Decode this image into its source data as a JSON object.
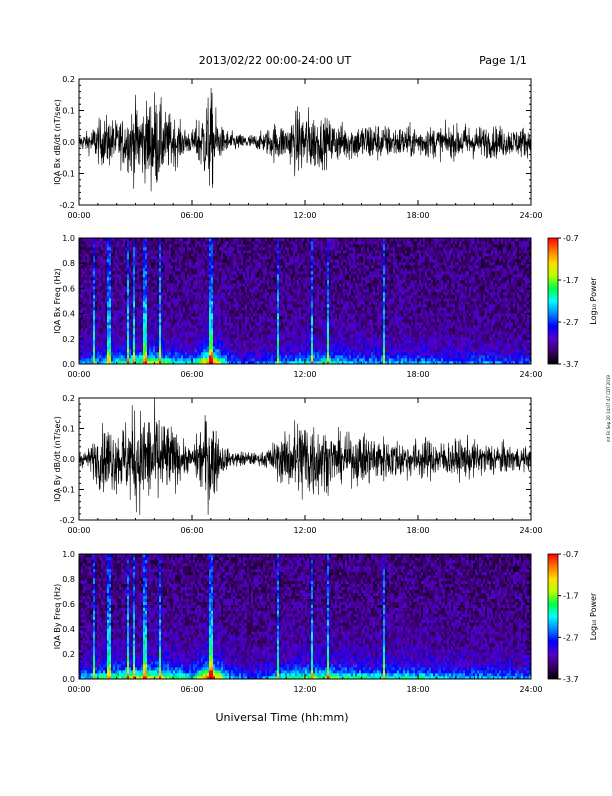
{
  "header": {
    "title": "2013/02/22  00:00-24:00 UT",
    "page": "Page 1/1"
  },
  "footer": {
    "xlabel": "Universal Time (hh:mm)",
    "side_note": "mt Fri Sep 20 14:07:47 CDT 2019"
  },
  "chart_data": [
    {
      "type": "line",
      "ylabel": "IQA Bx dB/dt (nT/sec)",
      "xlabel": "",
      "xlim": [
        0,
        24
      ],
      "ylim": [
        -0.2,
        0.2
      ],
      "xticks": [
        "00:00",
        "06:00",
        "12:00",
        "18:00",
        "24:00"
      ],
      "yticks": [
        "-0.2",
        "-0.1",
        "0.0",
        "0.1",
        "0.2"
      ],
      "envelope": {
        "x": [
          0,
          0.5,
          1,
          1.5,
          2,
          2.5,
          3,
          3.5,
          4,
          4.5,
          5,
          5.5,
          6,
          6.5,
          7,
          7.5,
          8,
          8.5,
          9,
          9.5,
          10,
          10.5,
          11,
          11.5,
          12,
          12.5,
          13,
          13.5,
          14,
          14.5,
          15,
          15.5,
          16,
          16.5,
          17,
          17.5,
          18,
          18.5,
          19,
          19.5,
          20,
          20.5,
          21,
          21.5,
          22,
          22.5,
          23,
          23.5,
          24
        ],
        "amp": [
          0.03,
          0.04,
          0.08,
          0.1,
          0.08,
          0.1,
          0.15,
          0.14,
          0.2,
          0.12,
          0.1,
          0.06,
          0.04,
          0.12,
          0.2,
          0.06,
          0.04,
          0.03,
          0.03,
          0.03,
          0.05,
          0.08,
          0.06,
          0.12,
          0.13,
          0.11,
          0.09,
          0.08,
          0.07,
          0.07,
          0.07,
          0.08,
          0.07,
          0.06,
          0.06,
          0.06,
          0.06,
          0.06,
          0.06,
          0.06,
          0.06,
          0.07,
          0.06,
          0.06,
          0.06,
          0.06,
          0.05,
          0.06,
          0.05
        ]
      }
    },
    {
      "type": "heatmap",
      "ylabel": "IQA Bx Freq (Hz)",
      "xlabel": "",
      "xlim": [
        0,
        24
      ],
      "ylim": [
        0,
        1.0
      ],
      "xticks": [
        "00:00",
        "06:00",
        "12:00",
        "18:00",
        "24:00"
      ],
      "yticks": [
        "0.0",
        "0.2",
        "0.4",
        "0.6",
        "0.8",
        "1.0"
      ],
      "colorbar": {
        "label": "Log₁₀ Power",
        "ticks": [
          "-0.7",
          "-1.7",
          "-2.7",
          "-3.7"
        ],
        "range": [
          -3.7,
          -0.7
        ],
        "colors": [
          "#000000",
          "#3a0066",
          "#5500cc",
          "#0000ff",
          "#0088ff",
          "#00ffff",
          "#00ff44",
          "#bbff00",
          "#ffdd00",
          "#ff7700",
          "#ff0000"
        ]
      },
      "intensity": {
        "x": [
          0,
          1,
          2,
          3,
          4,
          5,
          6,
          7,
          8,
          9,
          10,
          11,
          12,
          13,
          14,
          15,
          16,
          17,
          18,
          19,
          20,
          21,
          22,
          23,
          24
        ],
        "level": [
          0.25,
          0.35,
          0.45,
          0.55,
          0.6,
          0.45,
          0.35,
          0.95,
          0.3,
          0.2,
          0.3,
          0.35,
          0.45,
          0.45,
          0.4,
          0.35,
          0.35,
          0.35,
          0.35,
          0.3,
          0.3,
          0.3,
          0.3,
          0.25,
          0.25
        ]
      },
      "bright_columns": [
        0.8,
        1.6,
        2.6,
        2.9,
        3.5,
        4.3,
        7.0,
        10.6,
        12.4,
        13.2,
        16.2
      ]
    },
    {
      "type": "line",
      "ylabel": "IQA By dB/dt (nT/sec)",
      "xlabel": "",
      "xlim": [
        0,
        24
      ],
      "ylim": [
        -0.2,
        0.2
      ],
      "xticks": [
        "00:00",
        "06:00",
        "12:00",
        "18:00",
        "24:00"
      ],
      "yticks": [
        "-0.2",
        "-0.1",
        "0.0",
        "0.1",
        "0.2"
      ],
      "envelope": {
        "x": [
          0,
          0.5,
          1,
          1.5,
          2,
          2.5,
          3,
          3.5,
          4,
          4.5,
          5,
          5.5,
          6,
          6.5,
          7,
          7.5,
          8,
          8.5,
          9,
          9.5,
          10,
          10.5,
          11,
          11.5,
          12,
          12.5,
          13,
          13.5,
          14,
          14.5,
          15,
          15.5,
          16,
          16.5,
          17,
          17.5,
          18,
          18.5,
          19,
          19.5,
          20,
          20.5,
          21,
          21.5,
          22,
          22.5,
          23,
          23.5,
          24
        ],
        "amp": [
          0.03,
          0.04,
          0.1,
          0.14,
          0.12,
          0.15,
          0.2,
          0.18,
          0.2,
          0.16,
          0.12,
          0.07,
          0.04,
          0.14,
          0.2,
          0.07,
          0.03,
          0.03,
          0.03,
          0.02,
          0.04,
          0.08,
          0.1,
          0.16,
          0.18,
          0.16,
          0.12,
          0.1,
          0.09,
          0.09,
          0.1,
          0.1,
          0.09,
          0.08,
          0.08,
          0.07,
          0.08,
          0.08,
          0.07,
          0.07,
          0.07,
          0.08,
          0.07,
          0.06,
          0.07,
          0.06,
          0.05,
          0.05,
          0.04
        ]
      }
    },
    {
      "type": "heatmap",
      "ylabel": "IQA By Freq (Hz)",
      "xlabel": "Universal Time (hh:mm)",
      "xlim": [
        0,
        24
      ],
      "ylim": [
        0,
        1.0
      ],
      "xticks": [
        "00:00",
        "06:00",
        "12:00",
        "18:00",
        "24:00"
      ],
      "yticks": [
        "0.0",
        "0.2",
        "0.4",
        "0.6",
        "0.8",
        "1.0"
      ],
      "colorbar": {
        "label": "Log₁₀ Power",
        "ticks": [
          "-0.7",
          "-1.7",
          "-2.7",
          "-3.7"
        ],
        "range": [
          -3.7,
          -0.7
        ],
        "colors": [
          "#000000",
          "#3a0066",
          "#5500cc",
          "#0000ff",
          "#0088ff",
          "#00ffff",
          "#00ff44",
          "#bbff00",
          "#ffdd00",
          "#ff7700",
          "#ff0000"
        ]
      },
      "intensity": {
        "x": [
          0,
          1,
          2,
          3,
          4,
          5,
          6,
          7,
          8,
          9,
          10,
          11,
          12,
          13,
          14,
          15,
          16,
          17,
          18,
          19,
          20,
          21,
          22,
          23,
          24
        ],
        "level": [
          0.3,
          0.45,
          0.55,
          0.6,
          0.65,
          0.55,
          0.4,
          1.0,
          0.35,
          0.25,
          0.35,
          0.45,
          0.55,
          0.55,
          0.5,
          0.45,
          0.45,
          0.45,
          0.45,
          0.4,
          0.35,
          0.35,
          0.35,
          0.3,
          0.3
        ]
      },
      "bright_columns": [
        0.8,
        1.6,
        2.6,
        2.9,
        3.5,
        4.3,
        7.0,
        10.6,
        12.4,
        13.2,
        16.2
      ]
    }
  ]
}
